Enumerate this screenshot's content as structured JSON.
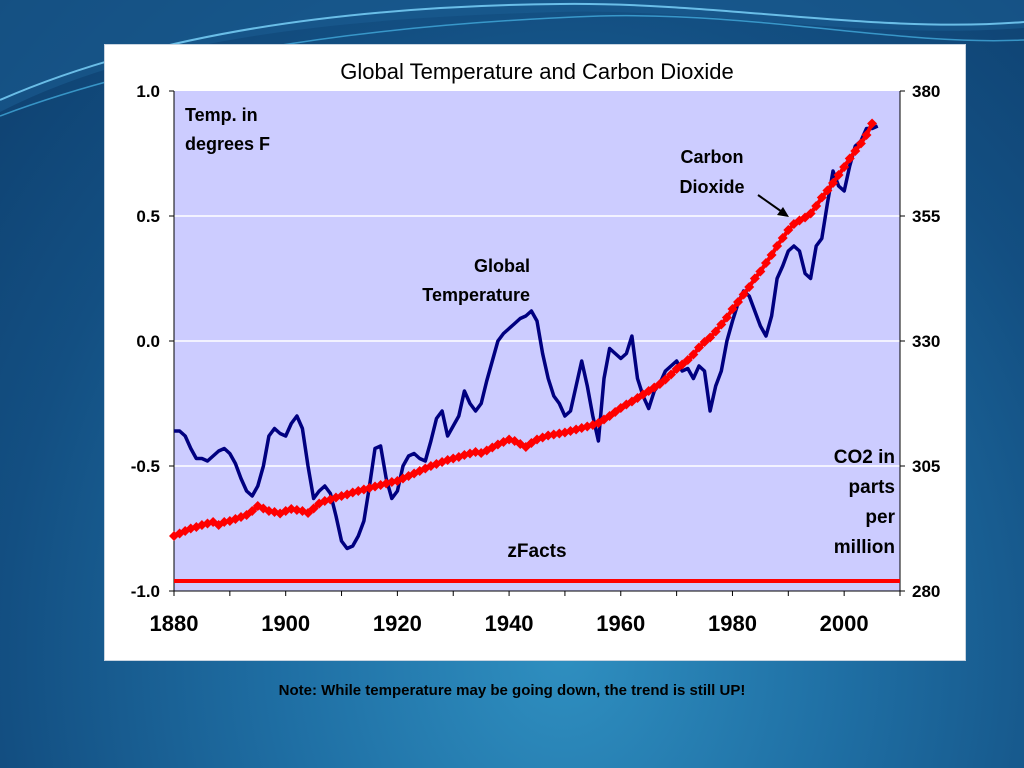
{
  "slide": {
    "footnote": "Note:  While temperature may be going down, the trend is still UP!"
  },
  "chart_data": {
    "type": "line",
    "title": "Global Temperature and Carbon Dioxide",
    "watermark": "zFacts",
    "annotations": {
      "left_axis_label": [
        "Temp. in",
        "degrees F"
      ],
      "right_axis_label": [
        "CO2 in",
        "parts",
        "per",
        "million"
      ],
      "co2_label": [
        "Carbon",
        "Dioxide"
      ],
      "temp_label": [
        "Global",
        "Temperature"
      ]
    },
    "colors": {
      "plot_background": "#ccccff",
      "temperature": "#000080",
      "co2": "#ff0000",
      "baseline": "#ff0000",
      "grid": "#ffffff"
    },
    "grid": true,
    "x_axis": {
      "range": [
        1880,
        2010
      ],
      "ticks": [
        "1880",
        "1900",
        "1920",
        "1940",
        "1960",
        "1980",
        "2000"
      ]
    },
    "y_left": {
      "range": [
        -1.0,
        1.0
      ],
      "ticks": [
        "1.0",
        "0.5",
        "0.0",
        "-0.5",
        "-1.0"
      ]
    },
    "y_right": {
      "range": [
        280,
        380
      ],
      "ticks": [
        "380",
        "355",
        "330",
        "305",
        "280"
      ]
    },
    "series": [
      {
        "axis": "left",
        "x": [
          1880,
          1881,
          1882,
          1883,
          1884,
          1885,
          1886,
          1887,
          1888,
          1889,
          1890,
          1891,
          1892,
          1893,
          1894,
          1895,
          1896,
          1897,
          1898,
          1899,
          1900,
          1901,
          1902,
          1903,
          1904,
          1905,
          1906,
          1907,
          1908,
          1909,
          1910,
          1911,
          1912,
          1913,
          1914,
          1915,
          1916,
          1917,
          1918,
          1919,
          1920,
          1921,
          1922,
          1923,
          1924,
          1925,
          1926,
          1927,
          1928,
          1929,
          1930,
          1931,
          1932,
          1933,
          1934,
          1935,
          1936,
          1937,
          1938,
          1939,
          1940,
          1941,
          1942,
          1943,
          1944,
          1945,
          1946,
          1947,
          1948,
          1949,
          1950,
          1951,
          1952,
          1953,
          1954,
          1955,
          1956,
          1957,
          1958,
          1959,
          1960,
          1961,
          1962,
          1963,
          1964,
          1965,
          1966,
          1967,
          1968,
          1969,
          1970,
          1971,
          1972,
          1973,
          1974,
          1975,
          1976,
          1977,
          1978,
          1979,
          1980,
          1981,
          1982,
          1983,
          1984,
          1985,
          1986,
          1987,
          1988,
          1989,
          1990,
          1991,
          1992,
          1993,
          1994,
          1995,
          1996,
          1997,
          1998,
          1999,
          2000,
          2001,
          2002,
          2003,
          2004,
          2005,
          2006
        ],
        "values": [
          -0.36,
          -0.36,
          -0.38,
          -0.43,
          -0.47,
          -0.47,
          -0.48,
          -0.46,
          -0.44,
          -0.43,
          -0.45,
          -0.49,
          -0.55,
          -0.6,
          -0.62,
          -0.58,
          -0.5,
          -0.38,
          -0.35,
          -0.37,
          -0.38,
          -0.33,
          -0.3,
          -0.35,
          -0.5,
          -0.63,
          -0.6,
          -0.58,
          -0.61,
          -0.7,
          -0.8,
          -0.83,
          -0.82,
          -0.78,
          -0.72,
          -0.58,
          -0.43,
          -0.42,
          -0.55,
          -0.63,
          -0.6,
          -0.5,
          -0.46,
          -0.45,
          -0.47,
          -0.48,
          -0.4,
          -0.31,
          -0.28,
          -0.38,
          -0.34,
          -0.3,
          -0.2,
          -0.25,
          -0.28,
          -0.25,
          -0.16,
          -0.08,
          0.0,
          0.03,
          0.05,
          0.07,
          0.09,
          0.1,
          0.12,
          0.08,
          -0.05,
          -0.15,
          -0.22,
          -0.25,
          -0.3,
          -0.28,
          -0.18,
          -0.08,
          -0.18,
          -0.3,
          -0.4,
          -0.15,
          -0.03,
          -0.05,
          -0.07,
          -0.05,
          0.02,
          -0.15,
          -0.22,
          -0.27,
          -0.2,
          -0.17,
          -0.12,
          -0.1,
          -0.08,
          -0.12,
          -0.11,
          -0.15,
          -0.1,
          -0.12,
          -0.28,
          -0.18,
          -0.12,
          0.0,
          0.08,
          0.15,
          0.2,
          0.18,
          0.12,
          0.06,
          0.02,
          0.1,
          0.25,
          0.3,
          0.36,
          0.38,
          0.36,
          0.27,
          0.25,
          0.38,
          0.41,
          0.55,
          0.68,
          0.62,
          0.6,
          0.7,
          0.78,
          0.8,
          0.85,
          0.85,
          0.86
        ],
        "note": "Global Temperature (deg F anomaly)"
      },
      {
        "axis": "right",
        "x": [
          1880,
          1881,
          1882,
          1883,
          1884,
          1885,
          1886,
          1887,
          1888,
          1889,
          1890,
          1891,
          1892,
          1893,
          1894,
          1895,
          1896,
          1897,
          1898,
          1899,
          1900,
          1901,
          1902,
          1903,
          1904,
          1905,
          1906,
          1907,
          1908,
          1909,
          1910,
          1911,
          1912,
          1913,
          1914,
          1915,
          1916,
          1917,
          1918,
          1919,
          1920,
          1921,
          1922,
          1923,
          1924,
          1925,
          1926,
          1927,
          1928,
          1929,
          1930,
          1931,
          1932,
          1933,
          1934,
          1935,
          1936,
          1937,
          1938,
          1939,
          1940,
          1941,
          1942,
          1943,
          1944,
          1945,
          1946,
          1947,
          1948,
          1949,
          1950,
          1951,
          1952,
          1953,
          1954,
          1955,
          1956,
          1957,
          1958,
          1959,
          1960,
          1961,
          1962,
          1963,
          1964,
          1965,
          1966,
          1967,
          1968,
          1969,
          1970,
          1971,
          1972,
          1973,
          1974,
          1975,
          1976,
          1977,
          1978,
          1979,
          1980,
          1981,
          1982,
          1983,
          1984,
          1985,
          1986,
          1987,
          1988,
          1989,
          1990,
          1991,
          1992,
          1993,
          1994,
          1995,
          1996,
          1997,
          1998,
          1999,
          2000,
          2001,
          2002,
          2003,
          2004,
          2005
        ],
        "values": [
          291,
          291.5,
          292,
          292.5,
          292.8,
          293.2,
          293.5,
          293.8,
          293.2,
          293.8,
          294,
          294.4,
          294.8,
          295.2,
          296,
          297,
          296.5,
          296,
          295.8,
          295.5,
          296,
          296.4,
          296.2,
          296,
          295.6,
          296.5,
          297.5,
          298,
          298.3,
          298.7,
          299,
          299.3,
          299.7,
          300,
          300.3,
          300.6,
          300.9,
          301.2,
          301.5,
          301.8,
          302,
          302.5,
          303,
          303.5,
          304,
          304.5,
          305,
          305.4,
          305.8,
          306.2,
          306.5,
          306.8,
          307.2,
          307.5,
          307.8,
          307.6,
          308.1,
          308.7,
          309.3,
          309.8,
          310.3,
          310,
          309.4,
          308.8,
          309.6,
          310.3,
          310.7,
          311.1,
          311.3,
          311.5,
          311.7,
          312,
          312.3,
          312.6,
          312.9,
          313.2,
          313.6,
          314.3,
          315,
          315.8,
          316.6,
          317.3,
          317.9,
          318.6,
          319.3,
          320,
          320.7,
          321.4,
          322.3,
          323.3,
          324.4,
          325.3,
          326.2,
          327.3,
          328.7,
          329.8,
          330.7,
          331.9,
          333.3,
          334.7,
          336.4,
          337.8,
          339.3,
          340.8,
          342.5,
          343.9,
          345.6,
          347.2,
          349,
          350.6,
          352.2,
          353.4,
          354.1,
          354.7,
          355.5,
          357,
          358.7,
          360.1,
          361.6,
          363.2,
          364.8,
          366.5,
          368,
          369.5,
          371.2,
          373.5
        ],
        "note": "Carbon Dioxide (ppm)"
      }
    ],
    "baseline_value": -0.96
  }
}
